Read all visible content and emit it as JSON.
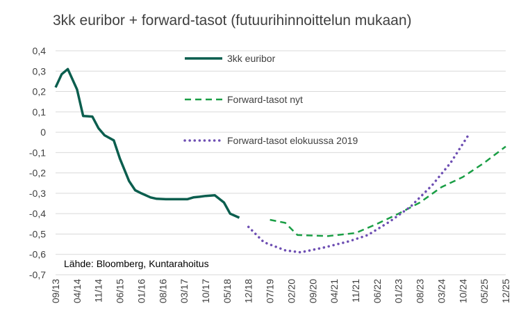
{
  "chart_data": {
    "type": "line",
    "title": "3kk euribor + forward-tasot (futuurihinnoittelun mukaan)",
    "xlabel": "",
    "ylabel": "",
    "ylim": [
      -0.7,
      0.4
    ],
    "y_ticks": [
      "0,4",
      "0,3",
      "0,2",
      "0,1",
      "0",
      "-0,1",
      "-0,2",
      "-0,3",
      "-0,4",
      "-0,5",
      "-0,6",
      "-0,7"
    ],
    "x_ticks": [
      "09/13",
      "04/14",
      "11/14",
      "06/15",
      "01/16",
      "08/16",
      "03/17",
      "10/17",
      "05/18",
      "12/18",
      "07/19",
      "02/20",
      "09/20",
      "04/21",
      "11/21",
      "06/22",
      "01/23",
      "08/23",
      "03/24",
      "10/24",
      "05/25",
      "12/25"
    ],
    "grid": "horizontal",
    "legend_position": "upper-middle",
    "source": "Lähde: Bloomberg, Kuntarahoitus",
    "series": [
      {
        "name": "3kk euribor",
        "style": "solid",
        "color": "#0B5E4E",
        "points": [
          {
            "x": "09/13",
            "y": 0.22
          },
          {
            "x": "11/13",
            "y": 0.285
          },
          {
            "x": "01/14",
            "y": 0.31
          },
          {
            "x": "04/14",
            "y": 0.21
          },
          {
            "x": "06/14",
            "y": 0.08
          },
          {
            "x": "09/14",
            "y": 0.077
          },
          {
            "x": "11/14",
            "y": 0.02
          },
          {
            "x": "01/15",
            "y": -0.015
          },
          {
            "x": "04/15",
            "y": -0.04
          },
          {
            "x": "06/15",
            "y": -0.13
          },
          {
            "x": "09/15",
            "y": -0.24
          },
          {
            "x": "11/15",
            "y": -0.285
          },
          {
            "x": "01/16",
            "y": -0.3
          },
          {
            "x": "04/16",
            "y": -0.32
          },
          {
            "x": "06/16",
            "y": -0.327
          },
          {
            "x": "09/16",
            "y": -0.329
          },
          {
            "x": "11/16",
            "y": -0.329
          },
          {
            "x": "01/17",
            "y": -0.329
          },
          {
            "x": "04/17",
            "y": -0.329
          },
          {
            "x": "06/17",
            "y": -0.32
          },
          {
            "x": "08/17",
            "y": -0.317
          },
          {
            "x": "10/17",
            "y": -0.313
          },
          {
            "x": "01/18",
            "y": -0.31
          },
          {
            "x": "04/18",
            "y": -0.345
          },
          {
            "x": "06/18",
            "y": -0.4
          },
          {
            "x": "09/18",
            "y": -0.42
          }
        ]
      },
      {
        "name": "Forward-tasot nyt",
        "style": "dashed",
        "color": "#1A9E45",
        "points": [
          {
            "x": "07/19",
            "y": -0.43
          },
          {
            "x": "12/19",
            "y": -0.445
          },
          {
            "x": "04/20",
            "y": -0.505
          },
          {
            "x": "02/21",
            "y": -0.51
          },
          {
            "x": "11/21",
            "y": -0.495
          },
          {
            "x": "06/22",
            "y": -0.45
          },
          {
            "x": "01/23",
            "y": -0.4
          },
          {
            "x": "08/23",
            "y": -0.345
          },
          {
            "x": "03/24",
            "y": -0.27
          },
          {
            "x": "10/24",
            "y": -0.22
          },
          {
            "x": "05/25",
            "y": -0.15
          },
          {
            "x": "12/25",
            "y": -0.07
          }
        ]
      },
      {
        "name": "Forward-tasot elokuussa 2019",
        "style": "dotted",
        "color": "#6E4FB3",
        "points": [
          {
            "x": "12/18",
            "y": -0.465
          },
          {
            "x": "05/19",
            "y": -0.54
          },
          {
            "x": "12/19",
            "y": -0.58
          },
          {
            "x": "05/20",
            "y": -0.59
          },
          {
            "x": "01/21",
            "y": -0.565
          },
          {
            "x": "09/21",
            "y": -0.535
          },
          {
            "x": "03/22",
            "y": -0.505
          },
          {
            "x": "10/22",
            "y": -0.44
          },
          {
            "x": "05/23",
            "y": -0.365
          },
          {
            "x": "12/23",
            "y": -0.26
          },
          {
            "x": "06/24",
            "y": -0.15
          },
          {
            "x": "12/24",
            "y": -0.01
          }
        ]
      }
    ]
  }
}
